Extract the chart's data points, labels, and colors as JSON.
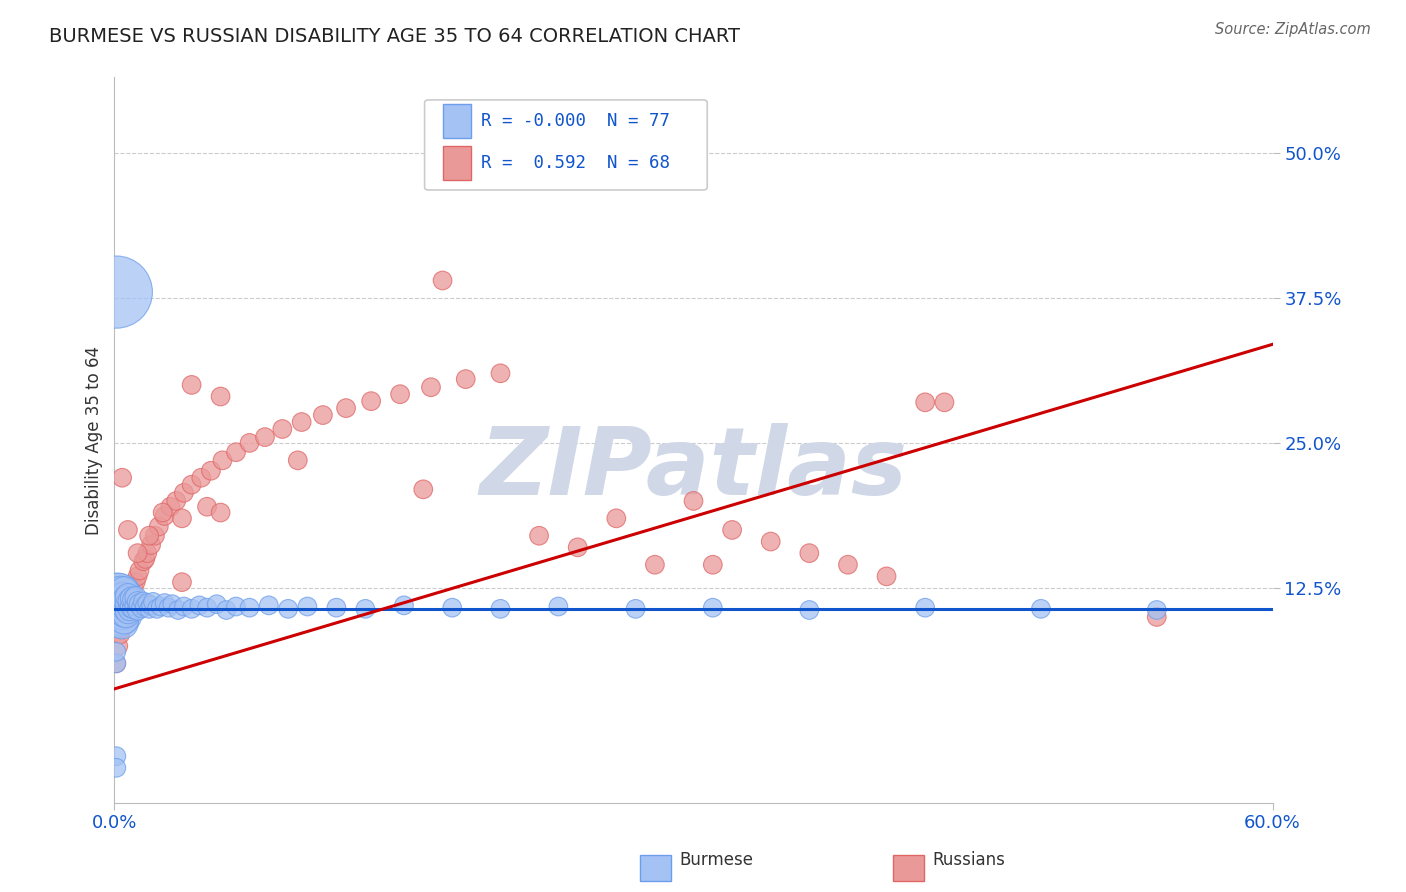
{
  "title": "BURMESE VS RUSSIAN DISABILITY AGE 35 TO 64 CORRELATION CHART",
  "source": "Source: ZipAtlas.com",
  "ylabel": "Disability Age 35 to 64",
  "ylabel_ticks": [
    0.125,
    0.25,
    0.375,
    0.5
  ],
  "ylabel_tick_labels": [
    "12.5%",
    "25.0%",
    "37.5%",
    "50.0%"
  ],
  "xmin": 0.0,
  "xmax": 0.6,
  "ymin": -0.06,
  "ymax": 0.565,
  "burmese_color": "#a4c2f4",
  "burmese_color_edge": "#6d9eeb",
  "russian_color": "#ea9999",
  "russian_color_edge": "#e06666",
  "trend_blue": "#1155cc",
  "trend_pink": "#cc0000",
  "legend_R_burmese": "-0.000",
  "legend_N_burmese": "77",
  "legend_R_russian": "0.592",
  "legend_N_russian": "68",
  "blue_line_y": 0.107,
  "pink_line_y0": 0.038,
  "pink_line_y1": 0.335,
  "burmese_x": [
    0.001,
    0.001,
    0.001,
    0.002,
    0.002,
    0.002,
    0.003,
    0.003,
    0.003,
    0.003,
    0.004,
    0.004,
    0.004,
    0.004,
    0.005,
    0.005,
    0.005,
    0.005,
    0.005,
    0.006,
    0.006,
    0.006,
    0.007,
    0.007,
    0.007,
    0.008,
    0.008,
    0.009,
    0.009,
    0.01,
    0.01,
    0.011,
    0.011,
    0.012,
    0.012,
    0.013,
    0.014,
    0.015,
    0.016,
    0.017,
    0.018,
    0.019,
    0.02,
    0.022,
    0.024,
    0.026,
    0.028,
    0.03,
    0.033,
    0.036,
    0.04,
    0.044,
    0.048,
    0.053,
    0.058,
    0.063,
    0.07,
    0.08,
    0.09,
    0.1,
    0.115,
    0.13,
    0.15,
    0.175,
    0.2,
    0.23,
    0.27,
    0.31,
    0.36,
    0.42,
    0.48,
    0.54,
    0.001,
    0.001,
    0.001,
    0.001,
    0.001
  ],
  "burmese_y": [
    0.105,
    0.11,
    0.115,
    0.108,
    0.112,
    0.118,
    0.1,
    0.107,
    0.113,
    0.119,
    0.095,
    0.103,
    0.109,
    0.116,
    0.098,
    0.104,
    0.11,
    0.117,
    0.122,
    0.102,
    0.108,
    0.115,
    0.105,
    0.111,
    0.118,
    0.107,
    0.114,
    0.109,
    0.116,
    0.108,
    0.115,
    0.11,
    0.117,
    0.106,
    0.113,
    0.111,
    0.108,
    0.113,
    0.109,
    0.112,
    0.107,
    0.11,
    0.113,
    0.107,
    0.109,
    0.112,
    0.108,
    0.111,
    0.106,
    0.109,
    0.107,
    0.11,
    0.108,
    0.111,
    0.106,
    0.109,
    0.108,
    0.11,
    0.107,
    0.109,
    0.108,
    0.107,
    0.11,
    0.108,
    0.107,
    0.109,
    0.107,
    0.108,
    0.106,
    0.108,
    0.107,
    0.106,
    0.06,
    0.07,
    -0.02,
    -0.03,
    0.38
  ],
  "burmese_sizes": [
    80,
    80,
    80,
    60,
    60,
    60,
    40,
    40,
    40,
    40,
    30,
    30,
    30,
    30,
    25,
    25,
    25,
    25,
    25,
    20,
    20,
    20,
    18,
    18,
    18,
    16,
    16,
    15,
    15,
    14,
    14,
    13,
    13,
    12,
    12,
    12,
    11,
    11,
    11,
    10,
    10,
    10,
    10,
    10,
    10,
    10,
    10,
    10,
    10,
    10,
    10,
    10,
    10,
    10,
    10,
    10,
    10,
    10,
    10,
    10,
    10,
    10,
    10,
    10,
    10,
    10,
    10,
    10,
    10,
    10,
    10,
    10,
    10,
    10,
    10,
    10,
    150
  ],
  "russian_x": [
    0.001,
    0.002,
    0.003,
    0.004,
    0.005,
    0.005,
    0.006,
    0.007,
    0.008,
    0.009,
    0.01,
    0.011,
    0.012,
    0.013,
    0.015,
    0.016,
    0.017,
    0.019,
    0.021,
    0.023,
    0.026,
    0.029,
    0.032,
    0.036,
    0.04,
    0.045,
    0.05,
    0.056,
    0.063,
    0.07,
    0.078,
    0.087,
    0.097,
    0.108,
    0.12,
    0.133,
    0.148,
    0.164,
    0.182,
    0.2,
    0.22,
    0.24,
    0.26,
    0.28,
    0.3,
    0.32,
    0.34,
    0.36,
    0.38,
    0.4,
    0.004,
    0.007,
    0.012,
    0.018,
    0.025,
    0.035,
    0.048,
    0.035,
    0.055,
    0.095,
    0.16,
    0.04,
    0.055,
    0.43,
    0.17,
    0.54,
    0.42,
    0.31
  ],
  "russian_y": [
    0.06,
    0.075,
    0.085,
    0.09,
    0.095,
    0.1,
    0.105,
    0.11,
    0.115,
    0.12,
    0.125,
    0.13,
    0.135,
    0.14,
    0.148,
    0.15,
    0.155,
    0.162,
    0.17,
    0.178,
    0.187,
    0.195,
    0.2,
    0.207,
    0.214,
    0.22,
    0.226,
    0.235,
    0.242,
    0.25,
    0.255,
    0.262,
    0.268,
    0.274,
    0.28,
    0.286,
    0.292,
    0.298,
    0.305,
    0.31,
    0.17,
    0.16,
    0.185,
    0.145,
    0.2,
    0.175,
    0.165,
    0.155,
    0.145,
    0.135,
    0.22,
    0.175,
    0.155,
    0.17,
    0.19,
    0.185,
    0.195,
    0.13,
    0.19,
    0.235,
    0.21,
    0.3,
    0.29,
    0.285,
    0.39,
    0.1,
    0.285,
    0.145
  ],
  "russian_sizes": [
    10,
    10,
    10,
    10,
    10,
    10,
    10,
    10,
    10,
    10,
    10,
    10,
    10,
    10,
    10,
    10,
    10,
    10,
    10,
    10,
    10,
    10,
    10,
    10,
    10,
    10,
    10,
    10,
    10,
    10,
    10,
    10,
    10,
    10,
    10,
    10,
    10,
    10,
    10,
    10,
    10,
    10,
    10,
    10,
    10,
    10,
    10,
    10,
    10,
    10,
    10,
    10,
    10,
    10,
    10,
    10,
    10,
    10,
    10,
    10,
    10,
    10,
    10,
    10,
    10,
    10,
    10,
    10
  ],
  "grid_color": "#aaaaaa",
  "grid_yticks": [
    0.125,
    0.25,
    0.375,
    0.5
  ],
  "watermark": "ZIPatlas",
  "watermark_color": "#d0d8e8",
  "watermark_fontsize": 68,
  "legend_color_text": "#1155cc",
  "background_color": "#ffffff"
}
